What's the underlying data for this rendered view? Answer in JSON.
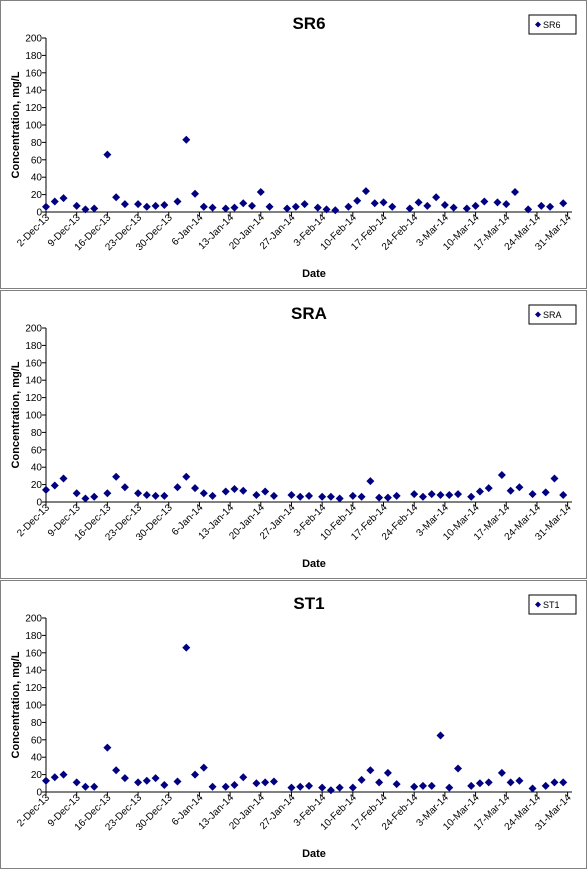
{
  "chart_data": [
    {
      "type": "scatter",
      "title": "SR6",
      "xlabel": "Date",
      "ylabel": "Concentration, mg/L",
      "ylim": [
        0,
        200
      ],
      "yticks": [
        0,
        20,
        40,
        60,
        80,
        100,
        120,
        140,
        160,
        180,
        200
      ],
      "xlim": [
        "2-Dec-13",
        "1-Apr-14"
      ],
      "xtick_labels": [
        "2-Dec-13",
        "9-Dec-13",
        "16-Dec-13",
        "23-Dec-13",
        "30-Dec-13",
        "6-Jan-14",
        "13-Jan-14",
        "20-Jan-14",
        "27-Jan-14",
        "3-Feb-14",
        "10-Feb-14",
        "17-Feb-14",
        "24-Feb-14",
        "3-Mar-14",
        "10-Mar-14",
        "17-Mar-14",
        "24-Mar-14",
        "31-Mar-14"
      ],
      "legend": "top-right",
      "grid": false,
      "marker_color": "#000080",
      "series": [
        {
          "name": "SR6",
          "points": [
            {
              "x": "2-Dec-13",
              "y": 6
            },
            {
              "x": "4-Dec-13",
              "y": 12
            },
            {
              "x": "6-Dec-13",
              "y": 16
            },
            {
              "x": "9-Dec-13",
              "y": 7
            },
            {
              "x": "11-Dec-13",
              "y": 3
            },
            {
              "x": "13-Dec-13",
              "y": 4
            },
            {
              "x": "16-Dec-13",
              "y": 66
            },
            {
              "x": "18-Dec-13",
              "y": 17
            },
            {
              "x": "20-Dec-13",
              "y": 9
            },
            {
              "x": "23-Dec-13",
              "y": 9
            },
            {
              "x": "25-Dec-13",
              "y": 6
            },
            {
              "x": "27-Dec-13",
              "y": 7
            },
            {
              "x": "29-Dec-13",
              "y": 8
            },
            {
              "x": "1-Jan-14",
              "y": 12
            },
            {
              "x": "3-Jan-14",
              "y": 83
            },
            {
              "x": "5-Jan-14",
              "y": 21
            },
            {
              "x": "7-Jan-14",
              "y": 6
            },
            {
              "x": "9-Jan-14",
              "y": 5
            },
            {
              "x": "12-Jan-14",
              "y": 4
            },
            {
              "x": "14-Jan-14",
              "y": 5
            },
            {
              "x": "16-Jan-14",
              "y": 10
            },
            {
              "x": "18-Jan-14",
              "y": 7
            },
            {
              "x": "20-Jan-14",
              "y": 23
            },
            {
              "x": "22-Jan-14",
              "y": 6
            },
            {
              "x": "26-Jan-14",
              "y": 4
            },
            {
              "x": "28-Jan-14",
              "y": 6
            },
            {
              "x": "30-Jan-14",
              "y": 9
            },
            {
              "x": "2-Feb-14",
              "y": 5
            },
            {
              "x": "4-Feb-14",
              "y": 3
            },
            {
              "x": "6-Feb-14",
              "y": 2
            },
            {
              "x": "9-Feb-14",
              "y": 6
            },
            {
              "x": "11-Feb-14",
              "y": 13
            },
            {
              "x": "13-Feb-14",
              "y": 24
            },
            {
              "x": "15-Feb-14",
              "y": 10
            },
            {
              "x": "17-Feb-14",
              "y": 11
            },
            {
              "x": "19-Feb-14",
              "y": 6
            },
            {
              "x": "23-Feb-14",
              "y": 4
            },
            {
              "x": "25-Feb-14",
              "y": 11
            },
            {
              "x": "27-Feb-14",
              "y": 7
            },
            {
              "x": "1-Mar-14",
              "y": 17
            },
            {
              "x": "3-Mar-14",
              "y": 8
            },
            {
              "x": "5-Mar-14",
              "y": 5
            },
            {
              "x": "8-Mar-14",
              "y": 4
            },
            {
              "x": "10-Mar-14",
              "y": 7
            },
            {
              "x": "12-Mar-14",
              "y": 12
            },
            {
              "x": "15-Mar-14",
              "y": 11
            },
            {
              "x": "17-Mar-14",
              "y": 9
            },
            {
              "x": "19-Mar-14",
              "y": 23
            },
            {
              "x": "22-Mar-14",
              "y": 3
            },
            {
              "x": "25-Mar-14",
              "y": 7
            },
            {
              "x": "27-Mar-14",
              "y": 6
            },
            {
              "x": "30-Mar-14",
              "y": 10
            }
          ]
        }
      ]
    },
    {
      "type": "scatter",
      "title": "SRA",
      "xlabel": "Date",
      "ylabel": "Concentration, mg/L",
      "ylim": [
        0,
        200
      ],
      "yticks": [
        0,
        20,
        40,
        60,
        80,
        100,
        120,
        140,
        160,
        180,
        200
      ],
      "xlim": [
        "2-Dec-13",
        "1-Apr-14"
      ],
      "xtick_labels": [
        "2-Dec-13",
        "9-Dec-13",
        "16-Dec-13",
        "23-Dec-13",
        "30-Dec-13",
        "6-Jan-14",
        "13-Jan-14",
        "20-Jan-14",
        "27-Jan-14",
        "3-Feb-14",
        "10-Feb-14",
        "17-Feb-14",
        "24-Feb-14",
        "3-Mar-14",
        "10-Mar-14",
        "17-Mar-14",
        "24-Mar-14",
        "31-Mar-14"
      ],
      "legend": "top-right",
      "grid": false,
      "marker_color": "#000080",
      "series": [
        {
          "name": "SRA",
          "points": [
            {
              "x": "2-Dec-13",
              "y": 14
            },
            {
              "x": "4-Dec-13",
              "y": 19
            },
            {
              "x": "6-Dec-13",
              "y": 27
            },
            {
              "x": "9-Dec-13",
              "y": 10
            },
            {
              "x": "11-Dec-13",
              "y": 4
            },
            {
              "x": "13-Dec-13",
              "y": 6
            },
            {
              "x": "16-Dec-13",
              "y": 10
            },
            {
              "x": "18-Dec-13",
              "y": 29
            },
            {
              "x": "20-Dec-13",
              "y": 17
            },
            {
              "x": "23-Dec-13",
              "y": 10
            },
            {
              "x": "25-Dec-13",
              "y": 8
            },
            {
              "x": "27-Dec-13",
              "y": 7
            },
            {
              "x": "29-Dec-13",
              "y": 7
            },
            {
              "x": "1-Jan-14",
              "y": 17
            },
            {
              "x": "3-Jan-14",
              "y": 29
            },
            {
              "x": "5-Jan-14",
              "y": 16
            },
            {
              "x": "7-Jan-14",
              "y": 10
            },
            {
              "x": "9-Jan-14",
              "y": 7
            },
            {
              "x": "12-Jan-14",
              "y": 12
            },
            {
              "x": "14-Jan-14",
              "y": 15
            },
            {
              "x": "16-Jan-14",
              "y": 13
            },
            {
              "x": "19-Jan-14",
              "y": 8
            },
            {
              "x": "21-Jan-14",
              "y": 12
            },
            {
              "x": "23-Jan-14",
              "y": 7
            },
            {
              "x": "27-Jan-14",
              "y": 8
            },
            {
              "x": "29-Jan-14",
              "y": 6
            },
            {
              "x": "31-Jan-14",
              "y": 7
            },
            {
              "x": "3-Feb-14",
              "y": 6
            },
            {
              "x": "5-Feb-14",
              "y": 6
            },
            {
              "x": "7-Feb-14",
              "y": 4
            },
            {
              "x": "10-Feb-14",
              "y": 7
            },
            {
              "x": "12-Feb-14",
              "y": 6
            },
            {
              "x": "14-Feb-14",
              "y": 24
            },
            {
              "x": "16-Feb-14",
              "y": 5
            },
            {
              "x": "18-Feb-14",
              "y": 5
            },
            {
              "x": "20-Feb-14",
              "y": 7
            },
            {
              "x": "24-Feb-14",
              "y": 9
            },
            {
              "x": "26-Feb-14",
              "y": 6
            },
            {
              "x": "28-Feb-14",
              "y": 9
            },
            {
              "x": "2-Mar-14",
              "y": 8
            },
            {
              "x": "4-Mar-14",
              "y": 8
            },
            {
              "x": "6-Mar-14",
              "y": 9
            },
            {
              "x": "9-Mar-14",
              "y": 6
            },
            {
              "x": "11-Mar-14",
              "y": 12
            },
            {
              "x": "13-Mar-14",
              "y": 16
            },
            {
              "x": "16-Mar-14",
              "y": 31
            },
            {
              "x": "18-Mar-14",
              "y": 13
            },
            {
              "x": "20-Mar-14",
              "y": 17
            },
            {
              "x": "23-Mar-14",
              "y": 9
            },
            {
              "x": "26-Mar-14",
              "y": 11
            },
            {
              "x": "28-Mar-14",
              "y": 27
            },
            {
              "x": "30-Mar-14",
              "y": 8
            }
          ]
        }
      ]
    },
    {
      "type": "scatter",
      "title": "ST1",
      "xlabel": "Date",
      "ylabel": "Concentration, mg/L",
      "ylim": [
        0,
        200
      ],
      "yticks": [
        0,
        20,
        40,
        60,
        80,
        100,
        120,
        140,
        160,
        180,
        200
      ],
      "xlim": [
        "2-Dec-13",
        "1-Apr-14"
      ],
      "xtick_labels": [
        "2-Dec-13",
        "9-Dec-13",
        "16-Dec-13",
        "23-Dec-13",
        "30-Dec-13",
        "6-Jan-14",
        "13-Jan-14",
        "20-Jan-14",
        "27-Jan-14",
        "3-Feb-14",
        "10-Feb-14",
        "17-Feb-14",
        "24-Feb-14",
        "3-Mar-14",
        "10-Mar-14",
        "17-Mar-14",
        "24-Mar-14",
        "31-Mar-14"
      ],
      "legend": "top-right",
      "grid": false,
      "marker_color": "#000080",
      "series": [
        {
          "name": "ST1",
          "points": [
            {
              "x": "2-Dec-13",
              "y": 13
            },
            {
              "x": "4-Dec-13",
              "y": 17
            },
            {
              "x": "6-Dec-13",
              "y": 20
            },
            {
              "x": "9-Dec-13",
              "y": 11
            },
            {
              "x": "11-Dec-13",
              "y": 6
            },
            {
              "x": "13-Dec-13",
              "y": 6
            },
            {
              "x": "16-Dec-13",
              "y": 51
            },
            {
              "x": "18-Dec-13",
              "y": 25
            },
            {
              "x": "20-Dec-13",
              "y": 16
            },
            {
              "x": "23-Dec-13",
              "y": 11
            },
            {
              "x": "25-Dec-13",
              "y": 13
            },
            {
              "x": "27-Dec-13",
              "y": 16
            },
            {
              "x": "29-Dec-13",
              "y": 8
            },
            {
              "x": "1-Jan-14",
              "y": 12
            },
            {
              "x": "3-Jan-14",
              "y": 166
            },
            {
              "x": "5-Jan-14",
              "y": 20
            },
            {
              "x": "7-Jan-14",
              "y": 28
            },
            {
              "x": "9-Jan-14",
              "y": 6
            },
            {
              "x": "12-Jan-14",
              "y": 6
            },
            {
              "x": "14-Jan-14",
              "y": 8
            },
            {
              "x": "16-Jan-14",
              "y": 17
            },
            {
              "x": "19-Jan-14",
              "y": 10
            },
            {
              "x": "21-Jan-14",
              "y": 11
            },
            {
              "x": "23-Jan-14",
              "y": 12
            },
            {
              "x": "27-Jan-14",
              "y": 5
            },
            {
              "x": "29-Jan-14",
              "y": 6
            },
            {
              "x": "31-Jan-14",
              "y": 7
            },
            {
              "x": "3-Feb-14",
              "y": 5
            },
            {
              "x": "5-Feb-14",
              "y": 2
            },
            {
              "x": "7-Feb-14",
              "y": 5
            },
            {
              "x": "10-Feb-14",
              "y": 5
            },
            {
              "x": "12-Feb-14",
              "y": 14
            },
            {
              "x": "14-Feb-14",
              "y": 25
            },
            {
              "x": "16-Feb-14",
              "y": 11
            },
            {
              "x": "18-Feb-14",
              "y": 22
            },
            {
              "x": "20-Feb-14",
              "y": 9
            },
            {
              "x": "24-Feb-14",
              "y": 6
            },
            {
              "x": "26-Feb-14",
              "y": 7
            },
            {
              "x": "28-Feb-14",
              "y": 7
            },
            {
              "x": "2-Mar-14",
              "y": 65
            },
            {
              "x": "4-Mar-14",
              "y": 5
            },
            {
              "x": "6-Mar-14",
              "y": 27
            },
            {
              "x": "9-Mar-14",
              "y": 7
            },
            {
              "x": "11-Mar-14",
              "y": 10
            },
            {
              "x": "13-Mar-14",
              "y": 11
            },
            {
              "x": "16-Mar-14",
              "y": 22
            },
            {
              "x": "18-Mar-14",
              "y": 11
            },
            {
              "x": "20-Mar-14",
              "y": 13
            },
            {
              "x": "23-Mar-14",
              "y": 4
            },
            {
              "x": "26-Mar-14",
              "y": 7
            },
            {
              "x": "28-Mar-14",
              "y": 11
            },
            {
              "x": "30-Mar-14",
              "y": 11
            }
          ]
        }
      ]
    }
  ]
}
